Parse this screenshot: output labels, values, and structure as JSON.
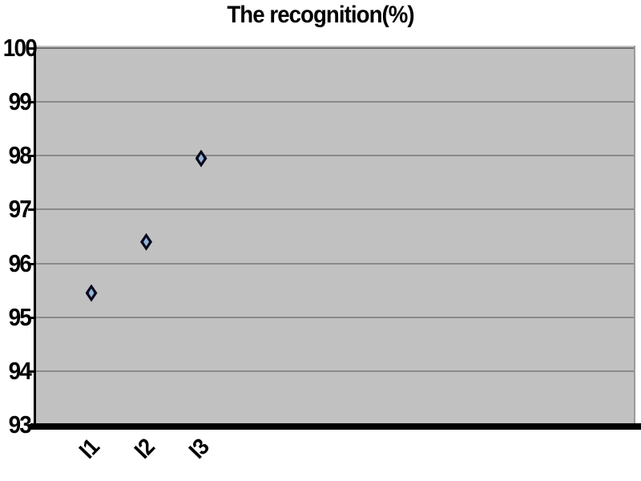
{
  "chart_data": {
    "type": "scatter",
    "title": "The recognition(%)",
    "categories": [
      "I1",
      "I2",
      "I3"
    ],
    "values": [
      95.45,
      96.4,
      97.95
    ],
    "ylim": [
      93,
      100
    ],
    "yticks": [
      93,
      94,
      95,
      96,
      97,
      98,
      99,
      100
    ],
    "xlabel": "",
    "ylabel": "",
    "grid": "horizontal",
    "legend_position": "none",
    "marker_shape": "diamond",
    "colors": {
      "page_bg": "#ffffff",
      "plot_bg": "#c1c1c1",
      "gridline": "#8a8a8a",
      "axis": "#000000",
      "marker_outer": "#0a0a1e",
      "marker_inner": "#93b5d7",
      "text": "#000000"
    }
  }
}
